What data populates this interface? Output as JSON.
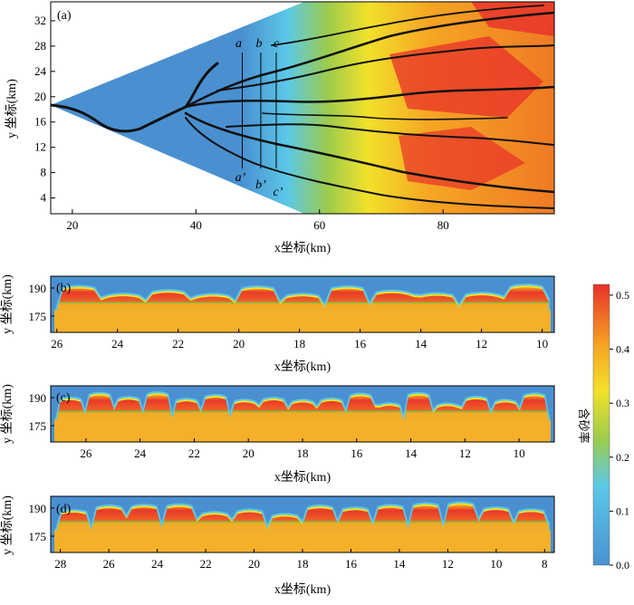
{
  "colors": {
    "blue": "#4a90d0",
    "cyan": "#5bc8e8",
    "green": "#7ac143",
    "yellow": "#f2e12a",
    "orange": "#f5a623",
    "red": "#e8302a",
    "channel": "#111111"
  },
  "chart_data": [
    {
      "type": "heatmap",
      "panel_label": "(a)",
      "xlabel": "x坐标(km)",
      "ylabel": "y 坐标(km)",
      "xlim": [
        16.5,
        98
      ],
      "ylim": [
        1.5,
        35
      ],
      "xticks": [
        "20",
        "40",
        "60",
        "80"
      ],
      "yticks": [
        "4",
        "8",
        "12",
        "16",
        "20",
        "24",
        "28",
        "32"
      ],
      "sections": [
        {
          "top": "a",
          "bottom": "a’",
          "x": 47.5
        },
        {
          "top": "b",
          "bottom": "b’",
          "x": 50.5
        },
        {
          "top": "c",
          "bottom": "c’",
          "x": 53
        }
      ],
      "fan_apex_y": 17.5,
      "fan_end_ymin": 1.5,
      "fan_end_ymax": 35
    },
    {
      "type": "heatmap",
      "panel_label": "(b)",
      "xlabel": "x坐标(km)",
      "ylabel": "y 坐标(km)",
      "xlim": [
        26.2,
        9.6
      ],
      "yticks": [
        "190",
        "175"
      ],
      "xticks": [
        "26",
        "24",
        "22",
        "20",
        "18",
        "16",
        "14",
        "12",
        "10"
      ]
    },
    {
      "type": "heatmap",
      "panel_label": "(c)",
      "xlabel": "x坐标(km)",
      "ylabel": "y 坐标(km)",
      "xlim": [
        27.3,
        8.7
      ],
      "yticks": [
        "190",
        "175"
      ],
      "xticks": [
        "26",
        "24",
        "22",
        "20",
        "18",
        "16",
        "14",
        "12",
        "10"
      ]
    },
    {
      "type": "heatmap",
      "panel_label": "(d)",
      "xlabel": "x坐标(km)",
      "ylabel": "y 坐标(km)",
      "xlim": [
        28.4,
        7.6
      ],
      "yticks": [
        "190",
        "175"
      ],
      "xticks": [
        "28",
        "26",
        "24",
        "22",
        "20",
        "18",
        "16",
        "14",
        "12",
        "10",
        "8"
      ]
    }
  ],
  "colorbar": {
    "label": "含砂率",
    "ticks": [
      "0.5",
      "0.4",
      "0.3",
      "0.2",
      "0.1",
      "0.0"
    ],
    "range": [
      0,
      0.52
    ]
  }
}
